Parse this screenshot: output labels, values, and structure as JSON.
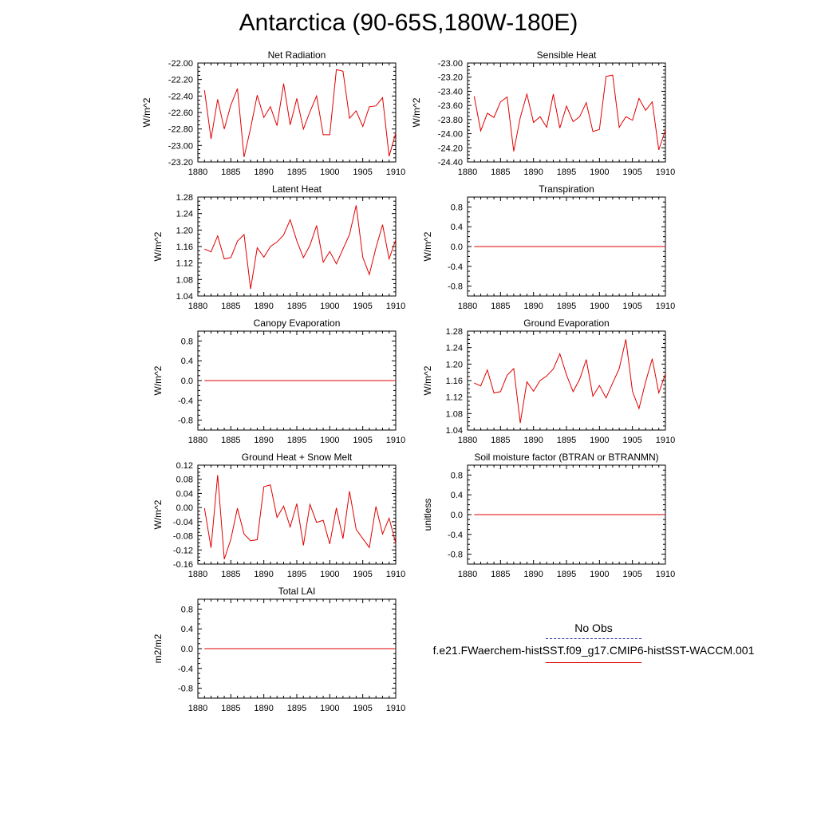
{
  "title": "Antarctica (90-65S,180W-180E)",
  "legend": {
    "obs_label": "No Obs",
    "case_label": "f.e21.FWaerchem-histSST.f09_g17.CMIP6-histSST-WACCM.001",
    "obs_color": "#2b2b9a",
    "case_color": "#e00000"
  },
  "chart_data": [
    {
      "type": "line",
      "title": "Net Radiation",
      "ylabel": "W/m^2",
      "xlim": [
        1880,
        1910
      ],
      "ylim": [
        -23.2,
        -22.0
      ],
      "xticks": [
        "1880",
        "1885",
        "1890",
        "1895",
        "1900",
        "1905",
        "1910"
      ],
      "yticks": [
        "-23.20",
        "-23.00",
        "-22.80",
        "-22.60",
        "-22.40",
        "-22.20",
        "-22.00"
      ],
      "series": [
        {
          "color": "#e00000",
          "x": [
            1881,
            1882,
            1883,
            1884,
            1885,
            1886,
            1887,
            1888,
            1889,
            1890,
            1891,
            1892,
            1893,
            1894,
            1895,
            1896,
            1897,
            1898,
            1899,
            1900,
            1901,
            1902,
            1903,
            1904,
            1905,
            1906,
            1907,
            1908,
            1909,
            1910
          ],
          "values": [
            -22.33,
            -22.92,
            -22.44,
            -22.8,
            -22.51,
            -22.31,
            -23.14,
            -22.79,
            -22.39,
            -22.66,
            -22.53,
            -22.76,
            -22.25,
            -22.75,
            -22.43,
            -22.8,
            -22.59,
            -22.4,
            -22.87,
            -22.87,
            -22.08,
            -22.1,
            -22.67,
            -22.58,
            -22.77,
            -22.53,
            -22.52,
            -22.42,
            -23.13,
            -22.85
          ]
        }
      ]
    },
    {
      "type": "line",
      "title": "Sensible Heat",
      "ylabel": "W/m^2",
      "xlim": [
        1880,
        1910
      ],
      "ylim": [
        -24.4,
        -23.0
      ],
      "xticks": [
        "1880",
        "1885",
        "1890",
        "1895",
        "1900",
        "1905",
        "1910"
      ],
      "yticks": [
        "-24.40",
        "-24.20",
        "-24.00",
        "-23.80",
        "-23.60",
        "-23.40",
        "-23.20",
        "-23.00"
      ],
      "series": [
        {
          "color": "#e00000",
          "x": [
            1881,
            1882,
            1883,
            1884,
            1885,
            1886,
            1887,
            1888,
            1889,
            1890,
            1891,
            1892,
            1893,
            1894,
            1895,
            1896,
            1897,
            1898,
            1899,
            1900,
            1901,
            1902,
            1903,
            1904,
            1905,
            1906,
            1907,
            1908,
            1909,
            1910
          ],
          "values": [
            -23.47,
            -23.96,
            -23.71,
            -23.77,
            -23.55,
            -23.48,
            -24.25,
            -23.77,
            -23.44,
            -23.84,
            -23.76,
            -23.91,
            -23.44,
            -23.92,
            -23.61,
            -23.83,
            -23.76,
            -23.56,
            -23.97,
            -23.94,
            -23.19,
            -23.17,
            -23.91,
            -23.76,
            -23.81,
            -23.5,
            -23.67,
            -23.55,
            -24.23,
            -23.95
          ]
        }
      ]
    },
    {
      "type": "line",
      "title": "Latent Heat",
      "ylabel": "W/m^2",
      "xlim": [
        1880,
        1910
      ],
      "ylim": [
        1.04,
        1.28
      ],
      "xticks": [
        "1880",
        "1885",
        "1890",
        "1895",
        "1900",
        "1905",
        "1910"
      ],
      "yticks": [
        "1.04",
        "1.08",
        "1.12",
        "1.16",
        "1.20",
        "1.24",
        "1.28"
      ],
      "series": [
        {
          "color": "#e00000",
          "x": [
            1881,
            1882,
            1883,
            1884,
            1885,
            1886,
            1887,
            1888,
            1889,
            1890,
            1891,
            1892,
            1893,
            1894,
            1895,
            1896,
            1897,
            1898,
            1899,
            1900,
            1901,
            1902,
            1903,
            1904,
            1905,
            1906,
            1907,
            1908,
            1909,
            1910
          ],
          "values": [
            1.154,
            1.147,
            1.186,
            1.13,
            1.133,
            1.173,
            1.189,
            1.057,
            1.157,
            1.134,
            1.16,
            1.171,
            1.188,
            1.225,
            1.174,
            1.133,
            1.163,
            1.211,
            1.122,
            1.148,
            1.118,
            1.154,
            1.189,
            1.26,
            1.134,
            1.092,
            1.157,
            1.213,
            1.13,
            1.176
          ]
        }
      ]
    },
    {
      "type": "line",
      "title": "Transpiration",
      "ylabel": "W/m^2",
      "xlim": [
        1880,
        1910
      ],
      "ylim": [
        -1.0,
        1.0
      ],
      "xticks": [
        "1880",
        "1885",
        "1890",
        "1895",
        "1900",
        "1905",
        "1910"
      ],
      "yticks": [
        "-0.8",
        "-0.4",
        "0.0",
        "0.4",
        "0.8"
      ],
      "series": [
        {
          "color": "#e00000",
          "x": [
            1881,
            1910
          ],
          "values": [
            0.0,
            0.0
          ]
        }
      ]
    },
    {
      "type": "line",
      "title": "Canopy Evaporation",
      "ylabel": "W/m^2",
      "xlim": [
        1880,
        1910
      ],
      "ylim": [
        -1.0,
        1.0
      ],
      "xticks": [
        "1880",
        "1885",
        "1890",
        "1895",
        "1900",
        "1905",
        "1910"
      ],
      "yticks": [
        "-0.8",
        "-0.4",
        "0.0",
        "0.4",
        "0.8"
      ],
      "series": [
        {
          "color": "#e00000",
          "x": [
            1881,
            1910
          ],
          "values": [
            0.0,
            0.0
          ]
        }
      ]
    },
    {
      "type": "line",
      "title": "Ground Evaporation",
      "ylabel": "W/m^2",
      "xlim": [
        1880,
        1910
      ],
      "ylim": [
        1.04,
        1.28
      ],
      "xticks": [
        "1880",
        "1885",
        "1890",
        "1895",
        "1900",
        "1905",
        "1910"
      ],
      "yticks": [
        "1.04",
        "1.08",
        "1.12",
        "1.16",
        "1.20",
        "1.24",
        "1.28"
      ],
      "series": [
        {
          "color": "#e00000",
          "x": [
            1881,
            1882,
            1883,
            1884,
            1885,
            1886,
            1887,
            1888,
            1889,
            1890,
            1891,
            1892,
            1893,
            1894,
            1895,
            1896,
            1897,
            1898,
            1899,
            1900,
            1901,
            1902,
            1903,
            1904,
            1905,
            1906,
            1907,
            1908,
            1909,
            1910
          ],
          "values": [
            1.154,
            1.147,
            1.186,
            1.13,
            1.133,
            1.173,
            1.189,
            1.057,
            1.157,
            1.134,
            1.16,
            1.171,
            1.188,
            1.225,
            1.174,
            1.133,
            1.163,
            1.211,
            1.122,
            1.148,
            1.118,
            1.154,
            1.189,
            1.26,
            1.134,
            1.092,
            1.157,
            1.213,
            1.13,
            1.176
          ]
        }
      ]
    },
    {
      "type": "line",
      "title": "Ground Heat + Snow Melt",
      "ylabel": "W/m^2",
      "xlim": [
        1880,
        1910
      ],
      "ylim": [
        -0.16,
        0.12
      ],
      "xticks": [
        "1880",
        "1885",
        "1890",
        "1895",
        "1900",
        "1905",
        "1910"
      ],
      "yticks": [
        "-0.16",
        "-0.12",
        "-0.08",
        "-0.04",
        "0.00",
        "0.04",
        "0.08",
        "0.12"
      ],
      "series": [
        {
          "color": "#e00000",
          "x": [
            1881,
            1882,
            1883,
            1884,
            1885,
            1886,
            1887,
            1888,
            1889,
            1890,
            1891,
            1892,
            1893,
            1894,
            1895,
            1896,
            1897,
            1898,
            1899,
            1900,
            1901,
            1902,
            1903,
            1904,
            1905,
            1906,
            1907,
            1908,
            1909,
            1910
          ],
          "values": [
            -0.002,
            -0.114,
            0.092,
            -0.146,
            -0.09,
            -0.002,
            -0.075,
            -0.094,
            -0.091,
            0.059,
            0.064,
            -0.028,
            0.004,
            -0.055,
            0.011,
            -0.107,
            0.009,
            -0.042,
            -0.036,
            -0.103,
            -0.001,
            -0.088,
            0.046,
            -0.062,
            -0.088,
            -0.113,
            0.003,
            -0.075,
            -0.03,
            -0.101
          ]
        }
      ]
    },
    {
      "type": "line",
      "title": "Soil moisture factor (BTRAN or BTRANMN)",
      "ylabel": "unitless",
      "xlim": [
        1880,
        1910
      ],
      "ylim": [
        -1.0,
        1.0
      ],
      "xticks": [
        "1880",
        "1885",
        "1890",
        "1895",
        "1900",
        "1905",
        "1910"
      ],
      "yticks": [
        "-0.8",
        "-0.4",
        "0.0",
        "0.4",
        "0.8"
      ],
      "series": [
        {
          "color": "#e00000",
          "x": [
            1881,
            1910
          ],
          "values": [
            0.0,
            0.0
          ]
        }
      ]
    },
    {
      "type": "line",
      "title": "Total LAI",
      "ylabel": "m2/m2",
      "xlim": [
        1880,
        1910
      ],
      "ylim": [
        -1.0,
        1.0
      ],
      "xticks": [
        "1880",
        "1885",
        "1890",
        "1895",
        "1900",
        "1905",
        "1910"
      ],
      "yticks": [
        "-0.8",
        "-0.4",
        "0.0",
        "0.4",
        "0.8"
      ],
      "series": [
        {
          "color": "#e00000",
          "x": [
            1881,
            1910
          ],
          "values": [
            0.0,
            0.0
          ]
        }
      ]
    }
  ]
}
